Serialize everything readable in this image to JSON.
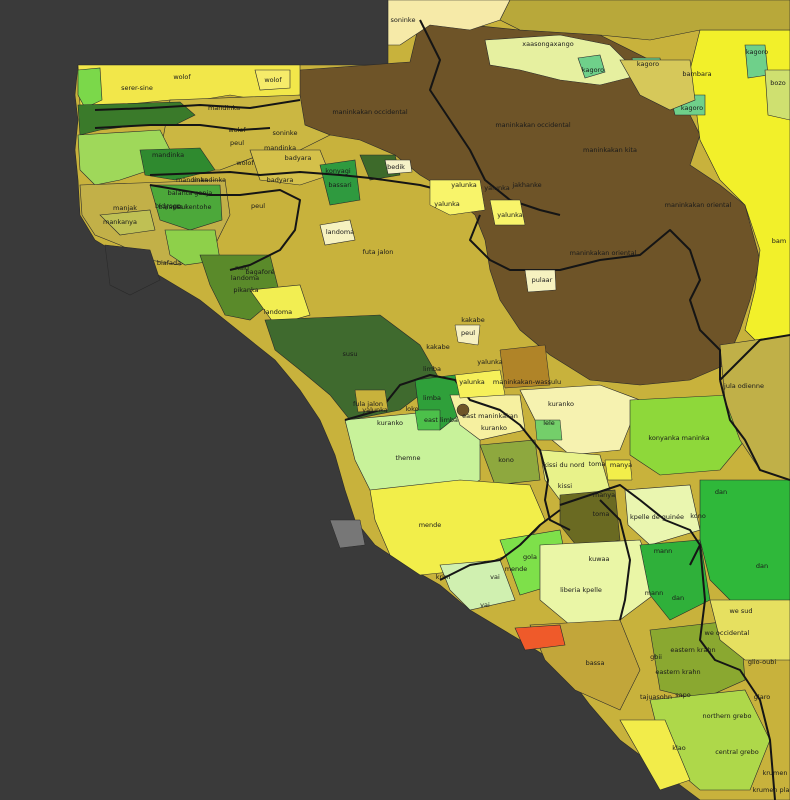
{
  "map": {
    "labels": [
      {
        "id": "soninke-n",
        "text": "soninke"
      },
      {
        "id": "xaasongaxango",
        "text": "xaasongaxango"
      },
      {
        "id": "kagoro1",
        "text": "kagoro"
      },
      {
        "id": "kagoro2",
        "text": "kagoro"
      },
      {
        "id": "kagoro3",
        "text": "kagoro"
      },
      {
        "id": "kagoro4",
        "text": "kagoro"
      },
      {
        "id": "bambara",
        "text": "bambara"
      },
      {
        "id": "bozo",
        "text": "bozo"
      },
      {
        "id": "serer-sine",
        "text": "serer-sine"
      },
      {
        "id": "wolof1",
        "text": "wolof"
      },
      {
        "id": "wolof2",
        "text": "wolof"
      },
      {
        "id": "wolof3",
        "text": "wolof"
      },
      {
        "id": "wolof4",
        "text": "wolof"
      },
      {
        "id": "mandinka1",
        "text": "mandinka"
      },
      {
        "id": "mandinka2",
        "text": "mandinka"
      },
      {
        "id": "mandinka3",
        "text": "mandinka"
      },
      {
        "id": "mandinka4",
        "text": "mandinka"
      },
      {
        "id": "soninke-w",
        "text": "soninke"
      },
      {
        "id": "peul1",
        "text": "peul"
      },
      {
        "id": "peul2",
        "text": "peul"
      },
      {
        "id": "peul3",
        "text": "peul"
      },
      {
        "id": "badyara",
        "text": "badyara"
      },
      {
        "id": "badyara2",
        "text": "badyara"
      },
      {
        "id": "bassari",
        "text": "bassari"
      },
      {
        "id": "konyagi",
        "text": "konyagi"
      },
      {
        "id": "bedik",
        "text": "bedik"
      },
      {
        "id": "maninkakan-occ1",
        "text": "maninkakan occidental"
      },
      {
        "id": "maninkakan-occ2",
        "text": "maninkakan occidental"
      },
      {
        "id": "maninkakan-kita",
        "text": "maninkakan kita"
      },
      {
        "id": "maninkakan-orient-n",
        "text": "maninkakan oriental"
      },
      {
        "id": "maninkakan-orient",
        "text": "maninkakan oriental"
      },
      {
        "id": "maninkakan-wassulu",
        "text": "maninkakan-wassulu"
      },
      {
        "id": "yalunka1",
        "text": "yalunka"
      },
      {
        "id": "yalunka2",
        "text": "yalunka"
      },
      {
        "id": "yalunka3",
        "text": "yalunka"
      },
      {
        "id": "yalunka4",
        "text": "yalunka"
      },
      {
        "id": "yalunka5",
        "text": "yalunka"
      },
      {
        "id": "yalunka6",
        "text": "yalunka"
      },
      {
        "id": "jakhanke",
        "text": "jakhanke"
      },
      {
        "id": "pulaar",
        "text": "pulaar"
      },
      {
        "id": "manjak",
        "text": "manjak"
      },
      {
        "id": "mankanya",
        "text": "mankanya"
      },
      {
        "id": "balanta-kentohe",
        "text": "balanta kentohe"
      },
      {
        "id": "balanta-ganja",
        "text": "balanta ganja"
      },
      {
        "id": "mandinka-gb",
        "text": "mandinka"
      },
      {
        "id": "bijago",
        "text": "bidyogo"
      },
      {
        "id": "biafada",
        "text": "biafada"
      },
      {
        "id": "nalu",
        "text": "nalu"
      },
      {
        "id": "landoma1",
        "text": "landoma"
      },
      {
        "id": "landoma2",
        "text": "landoma"
      },
      {
        "id": "landoma3",
        "text": "landoma"
      },
      {
        "id": "baga",
        "text": "bagaforé"
      },
      {
        "id": "pukanka",
        "text": "pikanka"
      },
      {
        "id": "futa-jalon",
        "text": "futa jalon"
      },
      {
        "id": "susu",
        "text": "susu"
      },
      {
        "id": "kakabe1",
        "text": "kakabe"
      },
      {
        "id": "kakabe2",
        "text": "kakabe"
      },
      {
        "id": "peul-mid",
        "text": "peul"
      },
      {
        "id": "limba1",
        "text": "limba"
      },
      {
        "id": "limba2",
        "text": "limba"
      },
      {
        "id": "east-limba",
        "text": "east limba"
      },
      {
        "id": "east-maninkakan",
        "text": "east maninkakan"
      },
      {
        "id": "kuranko1",
        "text": "kuranko"
      },
      {
        "id": "kuranko2",
        "text": "kuranko"
      },
      {
        "id": "fula-jalon",
        "text": "fula jalon"
      },
      {
        "id": "loko",
        "text": "loko"
      },
      {
        "id": "yalunka7",
        "text": "yalunka"
      },
      {
        "id": "koranko-n",
        "text": "kuranko"
      },
      {
        "id": "jula-odienne",
        "text": "jula odienne"
      },
      {
        "id": "konyanka",
        "text": "konyanka maninka"
      },
      {
        "id": "lele",
        "text": "lele"
      },
      {
        "id": "kono",
        "text": "kono"
      },
      {
        "id": "kissi-nord",
        "text": "kissi du nord"
      },
      {
        "id": "kissi-s",
        "text": "kissi"
      },
      {
        "id": "temne",
        "text": "themne"
      },
      {
        "id": "mende",
        "text": "mende"
      },
      {
        "id": "toma1",
        "text": "toma"
      },
      {
        "id": "toma2",
        "text": "toma"
      },
      {
        "id": "manya1",
        "text": "manya"
      },
      {
        "id": "manya2",
        "text": "manya"
      },
      {
        "id": "kpelle-guinee",
        "text": "kpelle de guinée"
      },
      {
        "id": "kono2",
        "text": "kono"
      },
      {
        "id": "dan1",
        "text": "dan"
      },
      {
        "id": "dan2",
        "text": "dan"
      },
      {
        "id": "dan3",
        "text": "dan"
      },
      {
        "id": "gola",
        "text": "gola"
      },
      {
        "id": "mende2",
        "text": "mende"
      },
      {
        "id": "vai",
        "text": "vai"
      },
      {
        "id": "krim",
        "text": "krim"
      },
      {
        "id": "vai2",
        "text": "vai"
      },
      {
        "id": "kuwaa",
        "text": "kuwaa"
      },
      {
        "id": "liberia-kpelle",
        "text": "liberia kpelle"
      },
      {
        "id": "mann1",
        "text": "mann"
      },
      {
        "id": "mann2",
        "text": "mann"
      },
      {
        "id": "we-sud",
        "text": "we sud"
      },
      {
        "id": "we-occ",
        "text": "we occidental"
      },
      {
        "id": "bassa",
        "text": "bassa"
      },
      {
        "id": "gbii",
        "text": "gbii"
      },
      {
        "id": "eastern-krahn1",
        "text": "eastern krahn"
      },
      {
        "id": "eastern-krahn2",
        "text": "eastern krahn"
      },
      {
        "id": "glio-oubi",
        "text": "glio-oubi"
      },
      {
        "id": "tajuasohn",
        "text": "tajuasohn"
      },
      {
        "id": "sapo",
        "text": "sapo"
      },
      {
        "id": "northern-grebo",
        "text": "northern grebo"
      },
      {
        "id": "glaro",
        "text": "glaro"
      },
      {
        "id": "klao",
        "text": "klao"
      },
      {
        "id": "central-grebo",
        "text": "central grebo"
      },
      {
        "id": "krumen",
        "text": "krumen"
      },
      {
        "id": "krumen-plapo",
        "text": "krumen plapo"
      },
      {
        "id": "bam-e",
        "text": "bam"
      }
    ]
  }
}
